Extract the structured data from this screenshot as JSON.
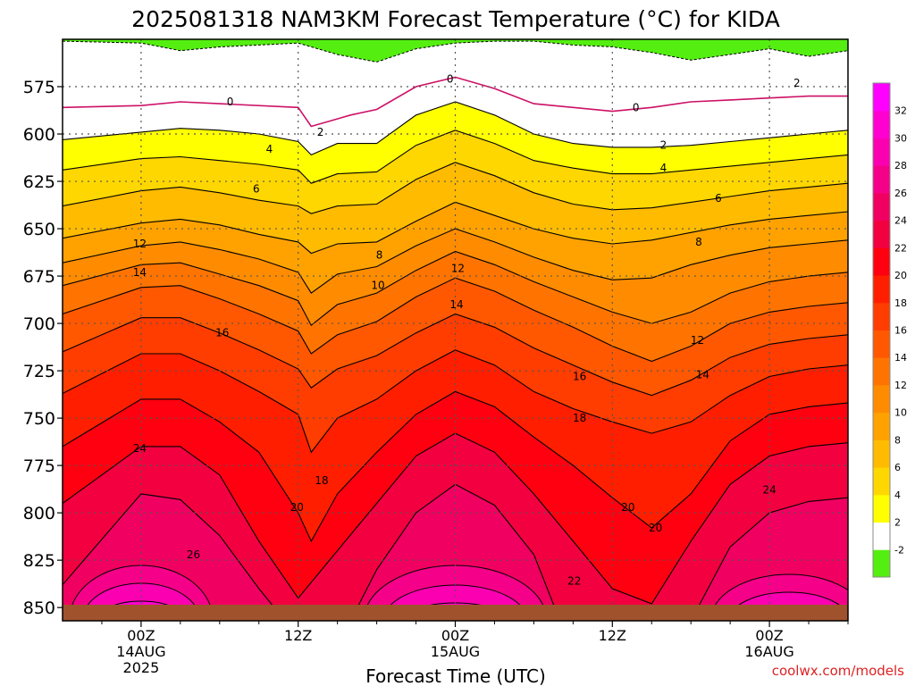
{
  "chart_data": {
    "type": "heatmap",
    "title": "2025081318 NAM3KM Forecast Temperature (°C) for KIDA",
    "xlabel": "Forecast Time (UTC)",
    "watermark": "coolwx.com/models",
    "y_ticks": [
      "575",
      "600",
      "625",
      "650",
      "675",
      "700",
      "725",
      "750",
      "775",
      "800",
      "825",
      "850"
    ],
    "x_ticks": [
      {
        "label": "00Z",
        "sub": "14AUG",
        "sub2": "2025"
      },
      {
        "label": "12Z",
        "sub": "",
        "sub2": ""
      },
      {
        "label": "00Z",
        "sub": "15AUG",
        "sub2": ""
      },
      {
        "label": "12Z",
        "sub": "",
        "sub2": ""
      },
      {
        "label": "00Z",
        "sub": "16AUG",
        "sub2": ""
      }
    ],
    "x_range_hours": [
      -6,
      54
    ],
    "y_range_hpa": [
      550,
      857
    ],
    "x_tick_hours": [
      0,
      12,
      24,
      36,
      48
    ],
    "isotherms": [
      {
        "level": 0,
        "times": [
          -6,
          0,
          3,
          6,
          12,
          13,
          16,
          18,
          21,
          24,
          27,
          30,
          36,
          39,
          42,
          45,
          48,
          51,
          54
        ],
        "p": [
          586,
          585,
          583,
          584,
          586,
          596,
          590,
          587,
          575,
          570,
          576,
          584,
          588,
          586,
          583,
          582,
          581,
          580,
          580
        ]
      },
      {
        "level": 2,
        "times": [
          -6,
          0,
          3,
          6,
          9,
          12,
          13,
          15,
          18,
          21,
          24,
          27,
          30,
          33,
          36,
          39,
          42,
          45,
          48,
          51,
          54
        ],
        "p": [
          603,
          599,
          597,
          598,
          600,
          604,
          611,
          605,
          605,
          590,
          583,
          590,
          600,
          605,
          607,
          607,
          606,
          604,
          602,
          600,
          598
        ]
      },
      {
        "level": 4,
        "times": [
          -6,
          0,
          3,
          6,
          9,
          12,
          13,
          15,
          18,
          21,
          24,
          27,
          30,
          33,
          36,
          39,
          42,
          45,
          48,
          51,
          54
        ],
        "p": [
          619,
          613,
          612,
          614,
          616,
          619,
          626,
          621,
          620,
          606,
          598,
          605,
          614,
          618,
          621,
          621,
          619,
          617,
          615,
          613,
          611
        ]
      },
      {
        "level": 6,
        "times": [
          -6,
          0,
          3,
          6,
          9,
          12,
          13,
          15,
          18,
          21,
          24,
          27,
          30,
          33,
          36,
          39,
          42,
          45,
          48,
          51,
          54
        ],
        "p": [
          638,
          630,
          628,
          631,
          635,
          638,
          642,
          638,
          637,
          624,
          615,
          622,
          631,
          637,
          640,
          639,
          636,
          633,
          630,
          628,
          626
        ]
      },
      {
        "level": 8,
        "times": [
          -6,
          0,
          3,
          6,
          9,
          12,
          13,
          15,
          18,
          21,
          24,
          27,
          30,
          33,
          36,
          39,
          42,
          45,
          48,
          51,
          54
        ],
        "p": [
          655,
          647,
          645,
          648,
          653,
          657,
          663,
          658,
          657,
          646,
          636,
          643,
          650,
          655,
          658,
          656,
          652,
          648,
          645,
          643,
          641
        ]
      },
      {
        "level": 10,
        "times": [
          -6,
          0,
          3,
          6,
          9,
          12,
          13,
          15,
          18,
          21,
          24,
          27,
          30,
          33,
          36,
          39,
          42,
          45,
          48,
          51,
          54
        ],
        "p": [
          668,
          659,
          657,
          661,
          666,
          673,
          684,
          674,
          670,
          659,
          650,
          657,
          665,
          672,
          677,
          676,
          669,
          664,
          660,
          658,
          656
        ]
      },
      {
        "level": 12,
        "times": [
          -6,
          0,
          3,
          6,
          9,
          12,
          13,
          15,
          18,
          21,
          24,
          27,
          30,
          33,
          36,
          39,
          42,
          45,
          48,
          51,
          54
        ],
        "p": [
          680,
          669,
          668,
          674,
          680,
          688,
          701,
          690,
          684,
          672,
          662,
          669,
          678,
          686,
          694,
          700,
          694,
          684,
          678,
          675,
          673
        ]
      },
      {
        "level": 14,
        "times": [
          -6,
          0,
          3,
          6,
          9,
          12,
          13,
          15,
          18,
          21,
          24,
          27,
          30,
          33,
          36,
          39,
          42,
          45,
          48,
          51,
          54
        ],
        "p": [
          695,
          681,
          680,
          687,
          695,
          704,
          716,
          706,
          699,
          686,
          676,
          683,
          693,
          702,
          712,
          720,
          712,
          700,
          694,
          691,
          689
        ]
      },
      {
        "level": 16,
        "times": [
          -6,
          0,
          3,
          6,
          9,
          12,
          13,
          15,
          18,
          21,
          24,
          27,
          30,
          33,
          36,
          39,
          42,
          45,
          48,
          51,
          54
        ],
        "p": [
          715,
          697,
          697,
          705,
          714,
          724,
          734,
          724,
          717,
          705,
          695,
          702,
          713,
          722,
          731,
          738,
          730,
          718,
          711,
          708,
          706
        ]
      },
      {
        "level": 18,
        "times": [
          -6,
          0,
          3,
          6,
          9,
          12,
          13,
          15,
          18,
          21,
          24,
          27,
          30,
          33,
          36,
          39,
          42,
          45,
          48,
          51,
          54
        ],
        "p": [
          737,
          716,
          716,
          725,
          736,
          748,
          768,
          750,
          740,
          725,
          714,
          722,
          736,
          745,
          752,
          758,
          752,
          738,
          728,
          724,
          722
        ]
      },
      {
        "level": 20,
        "times": [
          -6,
          0,
          3,
          6,
          9,
          12,
          13,
          15,
          18,
          21,
          24,
          27,
          30,
          33,
          36,
          39,
          42,
          45,
          48,
          51,
          54
        ],
        "p": [
          765,
          740,
          740,
          752,
          768,
          800,
          815,
          790,
          768,
          748,
          736,
          744,
          760,
          775,
          792,
          808,
          790,
          762,
          748,
          744,
          742
        ]
      },
      {
        "level": 22,
        "times": [
          -6,
          0,
          3,
          6,
          9,
          12,
          15,
          18,
          21,
          24,
          27,
          30,
          33,
          36,
          39,
          42,
          45,
          48,
          51,
          54
        ],
        "p": [
          795,
          765,
          765,
          780,
          815,
          845,
          820,
          795,
          770,
          758,
          768,
          790,
          815,
          840,
          848,
          815,
          785,
          770,
          765,
          763
        ]
      },
      {
        "level": 24,
        "times": [
          -6,
          0,
          3,
          6,
          9,
          11,
          16,
          18,
          21,
          24,
          27,
          30,
          32,
          42,
          45,
          48,
          51,
          54
        ],
        "p": [
          838,
          790,
          793,
          812,
          840,
          857,
          857,
          830,
          800,
          785,
          796,
          822,
          857,
          857,
          818,
          800,
          794,
          792
        ]
      }
    ],
    "colorbar_ticks": [
      "-2",
      "2",
      "4",
      "6",
      "8",
      "10",
      "12",
      "14",
      "16",
      "18",
      "20",
      "22",
      "24",
      "26",
      "28",
      "30",
      "32"
    ],
    "contour_labels": [
      {
        "text": "0",
        "t": 6.8,
        "p": 583
      },
      {
        "text": "0",
        "t": 23.6,
        "p": 571
      },
      {
        "text": "0",
        "t": 37.8,
        "p": 586
      },
      {
        "text": "2",
        "t": 13.7,
        "p": 599
      },
      {
        "text": "2",
        "t": 39.9,
        "p": 606
      },
      {
        "text": "2",
        "t": 50.1,
        "p": 573
      },
      {
        "text": "4",
        "t": 9.8,
        "p": 608
      },
      {
        "text": "4",
        "t": 39.9,
        "p": 618
      },
      {
        "text": "6",
        "t": 8.8,
        "p": 629
      },
      {
        "text": "6",
        "t": 44.1,
        "p": 634
      },
      {
        "text": "8",
        "t": 18.2,
        "p": 664
      },
      {
        "text": "8",
        "t": 42.6,
        "p": 657
      },
      {
        "text": "10",
        "t": 18.1,
        "p": 680
      },
      {
        "text": "12",
        "t": -0.1,
        "p": 658
      },
      {
        "text": "12",
        "t": 24.2,
        "p": 671
      },
      {
        "text": "12",
        "t": 42.5,
        "p": 709
      },
      {
        "text": "14",
        "t": -0.1,
        "p": 673
      },
      {
        "text": "14",
        "t": 24.1,
        "p": 690
      },
      {
        "text": "14",
        "t": 42.9,
        "p": 727
      },
      {
        "text": "16",
        "t": 6.2,
        "p": 705
      },
      {
        "text": "16",
        "t": 33.5,
        "p": 728
      },
      {
        "text": "18",
        "t": 13.8,
        "p": 783
      },
      {
        "text": "18",
        "t": 33.5,
        "p": 750
      },
      {
        "text": "20",
        "t": 11.9,
        "p": 797
      },
      {
        "text": "20",
        "t": 37.2,
        "p": 797
      },
      {
        "text": "20",
        "t": 39.3,
        "p": 808
      },
      {
        "text": "22",
        "t": 33.1,
        "p": 836
      },
      {
        "text": "24",
        "t": -0.1,
        "p": 766
      },
      {
        "text": "24",
        "t": 48.0,
        "p": 788
      },
      {
        "text": "26",
        "t": 4.0,
        "p": 822
      }
    ],
    "colors": {
      "cold": "#55ee11",
      "c-2_2": "#ffffff",
      "c2_4": "#ffff00",
      "c4_6": "#ffd700",
      "c6_8": "#ffbb00",
      "c8_10": "#ffa200",
      "c10_12": "#ff8c00",
      "c12_14": "#ff7400",
      "c14_16": "#ff5800",
      "c16_18": "#ff3d00",
      "c18_20": "#ff1f00",
      "c20_22": "#ff0010",
      "c22_24": "#f20040",
      "c24_26": "#f00060",
      "c26_28": "#f50088",
      "c28_30": "#fa00b0",
      "c30_32": "#ff00d0",
      "c32": "#ff00ff",
      "ground": "#a0522d",
      "zero_line": "#cc1066",
      "watermark": "#dd2222"
    }
  }
}
